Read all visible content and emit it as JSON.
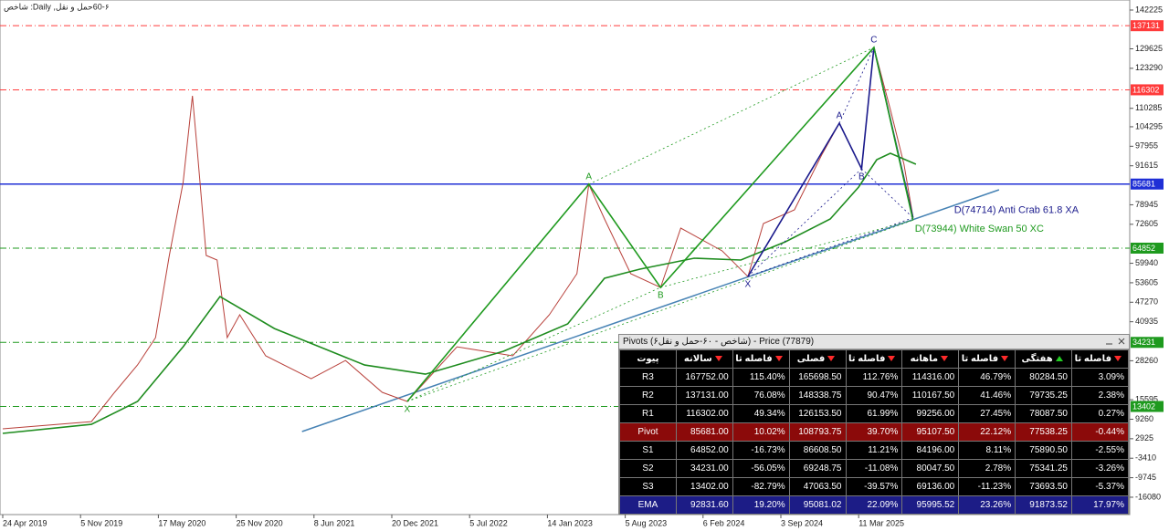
{
  "chart_data": {
    "type": "line",
    "title": "60-۶حمل و نقل, Daily: شاخص",
    "xticks": [
      "24 Apr 2019",
      "5 Nov 2019",
      "17 May 2020",
      "25 Nov 2020",
      "8 Jun 2021",
      "20 Dec 2021",
      "5 Jul 2022",
      "14 Jan 2023",
      "5 Aug 2023",
      "6 Feb 2024",
      "3 Sep 2024",
      "11 Mar 2025"
    ],
    "ylim": [
      -21724,
      145486
    ],
    "yticks": [
      142225,
      129625,
      123290,
      110285,
      104295,
      97955,
      91615,
      78945,
      72605,
      59940,
      53605,
      47270,
      40935,
      28260,
      15595,
      9260,
      2925,
      -3410,
      -9745,
      -16080
    ],
    "series": [
      {
        "color": "#b8403a",
        "x": [
          "24 Apr 2019",
          "2 Dec 2019",
          "29 Jan 2020",
          "26 Mar 2020",
          "10 May 2020",
          "13 Jun 2020",
          "17 Jul 2020",
          "9 Aug 2020",
          "20 Aug 2020",
          "12 Sep 2020",
          "9 Oct 2020",
          "3 Nov 2020",
          "4 Dec 2020",
          "7 Feb 2021",
          "1 Jun 2021",
          "26 Aug 2021",
          "26 Nov 2021",
          "28 Jan 2022",
          "3 Jun 2022",
          "20 Oct 2022",
          "19 Jan 2023",
          "1 Apr 2023",
          "2 May 2023",
          "12 Jun 2023",
          "18 Aug 2023",
          "28 Oct 2023",
          "15 Dec 2023",
          "29 Mar 2024",
          "6 Jun 2024",
          "18 Jul 2024",
          "6 Oct 2024",
          "11 Dec 2024",
          "23 Jan 2025",
          "18 Mar 2025",
          "17 Apr 2025",
          "27 May 2025",
          "29 Jun 2025",
          "21 Jul 2025"
        ],
        "values": [
          6130,
          8500,
          17990,
          26890,
          35770,
          62470,
          86190,
          114350,
          98050,
          62470,
          61000,
          35780,
          43200,
          29850,
          22430,
          28360,
          18000,
          15030,
          32810,
          29850,
          43190,
          56530,
          85590,
          74330,
          56530,
          52080,
          71360,
          63940,
          55640,
          72840,
          77290,
          95080,
          105460,
          90640,
          130070,
          109910,
          92120,
          74920
        ]
      },
      {
        "color": "#1e8c1e",
        "x": [
          "24 Apr 2019",
          "2 Dec 2019",
          "26 Mar 2020",
          "17 Jul 2020",
          "16 Oct 2020",
          "1 Mar 2021",
          "13 Oct 2021",
          "15 Mar 2022",
          "27 Sep 2022",
          "8 Mar 2023",
          "12 Jun 2023",
          "9 Sep 2023",
          "16 Jan 2024",
          "18 May 2024",
          "14 Sep 2024",
          "1 Jan 2025",
          "11 Mar 2025",
          "24 Apr 2025",
          "27 May 2025",
          "28 Jul 2025"
        ],
        "values": [
          4650,
          7610,
          15030,
          32810,
          49120,
          38740,
          26880,
          23910,
          31330,
          40230,
          55050,
          58020,
          61580,
          60980,
          66910,
          74330,
          84700,
          93600,
          95670,
          92120
        ]
      }
    ],
    "levels": [
      {
        "value": 137131,
        "color": "#ff3b3b",
        "style": "dashdot"
      },
      {
        "value": 116302,
        "color": "#ff3b3b",
        "style": "dashdot"
      },
      {
        "value": 85681,
        "color": "#1f2fd6",
        "style": "solid"
      },
      {
        "value": 64852,
        "color": "#1e9a1e",
        "style": "dashdot"
      },
      {
        "value": 34231,
        "color": "#1e9a1e",
        "style": "dashdot"
      },
      {
        "value": 13402,
        "color": "#1e9a1e",
        "style": "dashdot"
      }
    ],
    "trendline": {
      "color": "#4682b4",
      "x": [
        "9 May 2021",
        "15 Feb 2026"
      ],
      "values": [
        5242,
        83815
      ]
    },
    "patterns": [
      {
        "name": "D(74714) Anti Crab 61.8 XA",
        "color": "#1a1a8c",
        "labels": [
          "X",
          "A",
          "B",
          "C",
          null
        ],
        "x": [
          "6 Jun 2024",
          "23 Jan 2025",
          "18 Mar 2025",
          "17 Apr 2025",
          "21 Jul 2025"
        ],
        "values": [
          55640,
          105460,
          90640,
          130070,
          74714
        ]
      },
      {
        "name": "D(73944) White Swan 50 XC",
        "color": "#1f9a1f",
        "labels": [
          "X",
          "A",
          "B",
          null,
          null
        ],
        "x": [
          "28 Jan 2022",
          "2 May 2023",
          "28 Oct 2023",
          "17 Apr 2025",
          "21 Jul 2025"
        ],
        "values": [
          15030,
          85590,
          52080,
          130070,
          73944
        ]
      }
    ]
  },
  "pivot_table": {
    "title": "Pivots (شاخص - ۶۰-حمل و نقل۶) - Price (77879)",
    "columns": [
      "پیوت",
      "سالانه",
      "فاصله تا قیمت",
      "فصلی",
      "فاصله تا قیمت",
      "ماهانه",
      "فاصله تا قیمت",
      "هفتگی",
      "فاصله تا قیمت"
    ],
    "rows": [
      [
        "R3",
        "167752.00",
        "115.40%",
        "165698.50",
        "112.76%",
        "114316.00",
        "46.79%",
        "80284.50",
        "3.09%"
      ],
      [
        "R2",
        "137131.00",
        "76.08%",
        "148338.75",
        "90.47%",
        "110167.50",
        "41.46%",
        "79735.25",
        "2.38%"
      ],
      [
        "R1",
        "116302.00",
        "49.34%",
        "126153.50",
        "61.99%",
        "99256.00",
        "27.45%",
        "78087.50",
        "0.27%"
      ],
      [
        "Pivot",
        "85681.00",
        "10.02%",
        "108793.75",
        "39.70%",
        "95107.50",
        "22.12%",
        "77538.25",
        "-0.44%"
      ],
      [
        "S1",
        "64852.00",
        "-16.73%",
        "86608.50",
        "11.21%",
        "84196.00",
        "8.11%",
        "75890.50",
        "-2.55%"
      ],
      [
        "S2",
        "34231.00",
        "-56.05%",
        "69248.75",
        "-11.08%",
        "80047.50",
        "2.78%",
        "75341.25",
        "-3.26%"
      ],
      [
        "S3",
        "13402.00",
        "-82.79%",
        "47063.50",
        "-39.57%",
        "69136.00",
        "-11.23%",
        "73693.50",
        "-5.37%"
      ],
      [
        "EMA",
        "92831.60",
        "19.20%",
        "95081.02",
        "22.09%",
        "95995.52",
        "23.26%",
        "91873.52",
        "17.97%"
      ]
    ]
  }
}
